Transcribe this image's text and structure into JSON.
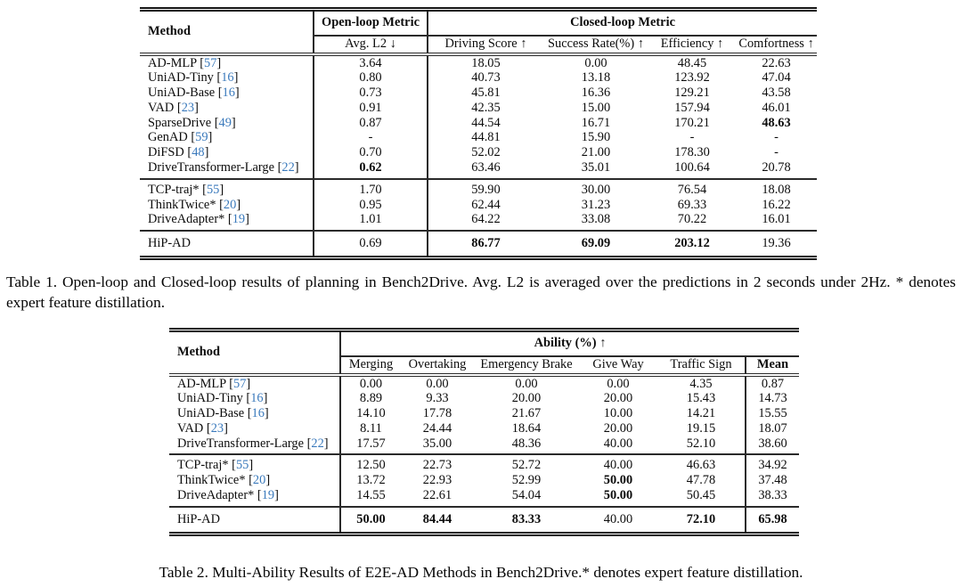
{
  "colors": {
    "citation_link": "#3b7abc",
    "text": "#0c0c0c",
    "rule": "#2a2a2a"
  },
  "t1": {
    "caption": "Table 1. Open-loop and Closed-loop results of planning in Bench2Drive. Avg. L2 is averaged over the predictions in 2 seconds under 2Hz. * denotes expert feature distillation.",
    "header": {
      "method": "Method",
      "open_loop": "Open-loop Metric",
      "closed_loop": "Closed-loop Metric",
      "cols": [
        "Avg. L2 ↓",
        "Driving Score ↑",
        "Success Rate(%) ↑",
        "Efficiency ↑",
        "Comfortness ↑"
      ]
    },
    "groups": [
      {
        "rows": [
          {
            "method": "AD-MLP",
            "cite": "57",
            "values": [
              "3.64",
              "18.05",
              "0.00",
              "48.45",
              "22.63"
            ],
            "bold": []
          },
          {
            "method": "UniAD-Tiny",
            "cite": "16",
            "values": [
              "0.80",
              "40.73",
              "13.18",
              "123.92",
              "47.04"
            ],
            "bold": []
          },
          {
            "method": "UniAD-Base",
            "cite": "16",
            "values": [
              "0.73",
              "45.81",
              "16.36",
              "129.21",
              "43.58"
            ],
            "bold": []
          },
          {
            "method": "VAD",
            "cite": "23",
            "values": [
              "0.91",
              "42.35",
              "15.00",
              "157.94",
              "46.01"
            ],
            "bold": []
          },
          {
            "method": "SparseDrive",
            "cite": "49",
            "values": [
              "0.87",
              "44.54",
              "16.71",
              "170.21",
              "48.63"
            ],
            "bold": [
              4
            ]
          },
          {
            "method": "GenAD",
            "cite": "59",
            "values": [
              "-",
              "44.81",
              "15.90",
              "-",
              "-"
            ],
            "bold": []
          },
          {
            "method": "DiFSD",
            "cite": "48",
            "values": [
              "0.70",
              "52.02",
              "21.00",
              "178.30",
              "-"
            ],
            "bold": []
          },
          {
            "method": "DriveTransformer-Large",
            "cite": "22",
            "values": [
              "0.62",
              "63.46",
              "35.01",
              "100.64",
              "20.78"
            ],
            "bold": [
              0
            ]
          }
        ]
      },
      {
        "rows": [
          {
            "method": "TCP-traj*",
            "cite": "55",
            "values": [
              "1.70",
              "59.90",
              "30.00",
              "76.54",
              "18.08"
            ],
            "bold": []
          },
          {
            "method": "ThinkTwice*",
            "cite": "20",
            "values": [
              "0.95",
              "62.44",
              "31.23",
              "69.33",
              "16.22"
            ],
            "bold": []
          },
          {
            "method": "DriveAdapter*",
            "cite": "19",
            "values": [
              "1.01",
              "64.22",
              "33.08",
              "70.22",
              "16.01"
            ],
            "bold": []
          }
        ]
      },
      {
        "rows": [
          {
            "method": "HiP-AD",
            "cite": null,
            "values": [
              "0.69",
              "86.77",
              "69.09",
              "203.12",
              "19.36"
            ],
            "bold": [
              1,
              2,
              3
            ]
          }
        ]
      }
    ]
  },
  "t2": {
    "caption": "Table 2. Multi-Ability Results of E2E-AD Methods in Bench2Drive.* denotes expert feature distillation.",
    "header": {
      "method": "Method",
      "ability_bold": "Ability",
      "ability_rest": "(%) ↑",
      "cols": [
        "Merging",
        "Overtaking",
        "Emergency Brake",
        "Give Way",
        "Traffic Sign",
        "Mean"
      ]
    },
    "groups": [
      {
        "rows": [
          {
            "method": "AD-MLP",
            "cite": "57",
            "values": [
              "0.00",
              "0.00",
              "0.00",
              "0.00",
              "4.35",
              "0.87"
            ],
            "bold": []
          },
          {
            "method": "UniAD-Tiny",
            "cite": "16",
            "values": [
              "8.89",
              "9.33",
              "20.00",
              "20.00",
              "15.43",
              "14.73"
            ],
            "bold": []
          },
          {
            "method": "UniAD-Base",
            "cite": "16",
            "values": [
              "14.10",
              "17.78",
              "21.67",
              "10.00",
              "14.21",
              "15.55"
            ],
            "bold": []
          },
          {
            "method": "VAD",
            "cite": "23",
            "values": [
              "8.11",
              "24.44",
              "18.64",
              "20.00",
              "19.15",
              "18.07"
            ],
            "bold": []
          },
          {
            "method": "DriveTransformer-Large",
            "cite": "22",
            "values": [
              "17.57",
              "35.00",
              "48.36",
              "40.00",
              "52.10",
              "38.60"
            ],
            "bold": []
          }
        ]
      },
      {
        "rows": [
          {
            "method": "TCP-traj*",
            "cite": "55",
            "values": [
              "12.50",
              "22.73",
              "52.72",
              "40.00",
              "46.63",
              "34.92"
            ],
            "bold": []
          },
          {
            "method": "ThinkTwice*",
            "cite": "20",
            "values": [
              "13.72",
              "22.93",
              "52.99",
              "50.00",
              "47.78",
              "37.48"
            ],
            "bold": [
              3
            ]
          },
          {
            "method": "DriveAdapter*",
            "cite": "19",
            "values": [
              "14.55",
              "22.61",
              "54.04",
              "50.00",
              "50.45",
              "38.33"
            ],
            "bold": [
              3
            ]
          }
        ]
      },
      {
        "rows": [
          {
            "method": "HiP-AD",
            "cite": null,
            "values": [
              "50.00",
              "84.44",
              "83.33",
              "40.00",
              "72.10",
              "65.98"
            ],
            "bold": [
              0,
              1,
              2,
              4,
              5
            ]
          }
        ]
      }
    ]
  }
}
